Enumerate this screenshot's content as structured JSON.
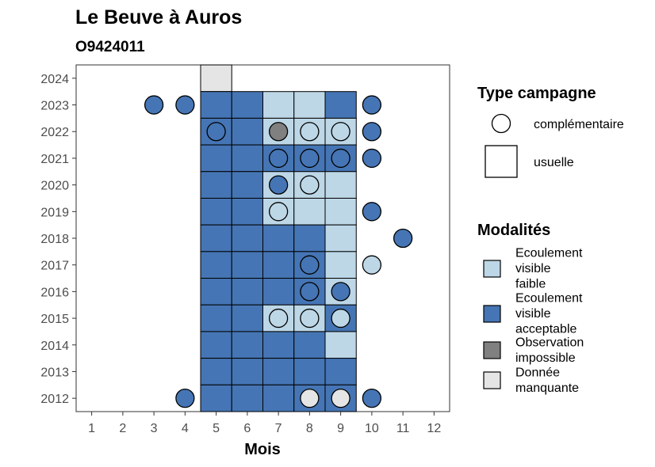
{
  "chart_data": {
    "type": "heatmap",
    "title": "Le Beuve à Auros",
    "subtitle": "O9424011",
    "xlabel": "Mois",
    "ylabel": "",
    "x_ticks": [
      "1",
      "2",
      "3",
      "4",
      "5",
      "6",
      "7",
      "8",
      "9",
      "10",
      "11",
      "12"
    ],
    "y_ticks": [
      "2012",
      "2013",
      "2014",
      "2015",
      "2016",
      "2017",
      "2018",
      "2019",
      "2020",
      "2021",
      "2022",
      "2023",
      "2024"
    ],
    "xlim": [
      0.5,
      12.5
    ],
    "ylim": [
      2011.5,
      2024.5
    ],
    "colors": {
      "faible": "#bdd7e7",
      "acceptable": "#4575b4",
      "impossible": "#808080",
      "manquante": "#e5e5e5"
    },
    "legend_type": {
      "title": "Type campagne",
      "items": [
        {
          "key": "complementaire",
          "label": "complémentaire",
          "shape": "circle"
        },
        {
          "key": "usuelle",
          "label": "usuelle",
          "shape": "square"
        }
      ]
    },
    "legend_modalites": {
      "title": "Modalités",
      "items": [
        {
          "key": "faible",
          "lines": [
            "Ecoulement",
            "visible",
            "faible"
          ]
        },
        {
          "key": "acceptable",
          "lines": [
            "Ecoulement",
            "visible",
            "acceptable"
          ]
        },
        {
          "key": "impossible",
          "lines": [
            "Observation",
            "impossible"
          ]
        },
        {
          "key": "manquante",
          "lines": [
            "Donnée",
            "manquante"
          ]
        }
      ]
    },
    "usuelle": [
      {
        "year": 2024,
        "month": 5,
        "m": "manquante"
      },
      {
        "year": 2023,
        "month": 5,
        "m": "acceptable"
      },
      {
        "year": 2023,
        "month": 6,
        "m": "acceptable"
      },
      {
        "year": 2023,
        "month": 7,
        "m": "faible"
      },
      {
        "year": 2023,
        "month": 8,
        "m": "faible"
      },
      {
        "year": 2023,
        "month": 9,
        "m": "acceptable"
      },
      {
        "year": 2022,
        "month": 5,
        "m": "acceptable"
      },
      {
        "year": 2022,
        "month": 6,
        "m": "acceptable"
      },
      {
        "year": 2022,
        "month": 7,
        "m": "faible"
      },
      {
        "year": 2022,
        "month": 8,
        "m": "faible"
      },
      {
        "year": 2022,
        "month": 9,
        "m": "faible"
      },
      {
        "year": 2021,
        "month": 5,
        "m": "acceptable"
      },
      {
        "year": 2021,
        "month": 6,
        "m": "acceptable"
      },
      {
        "year": 2021,
        "month": 7,
        "m": "acceptable"
      },
      {
        "year": 2021,
        "month": 8,
        "m": "acceptable"
      },
      {
        "year": 2021,
        "month": 9,
        "m": "acceptable"
      },
      {
        "year": 2020,
        "month": 5,
        "m": "acceptable"
      },
      {
        "year": 2020,
        "month": 6,
        "m": "acceptable"
      },
      {
        "year": 2020,
        "month": 7,
        "m": "faible"
      },
      {
        "year": 2020,
        "month": 8,
        "m": "faible"
      },
      {
        "year": 2020,
        "month": 9,
        "m": "faible"
      },
      {
        "year": 2019,
        "month": 5,
        "m": "acceptable"
      },
      {
        "year": 2019,
        "month": 6,
        "m": "acceptable"
      },
      {
        "year": 2019,
        "month": 7,
        "m": "faible"
      },
      {
        "year": 2019,
        "month": 8,
        "m": "faible"
      },
      {
        "year": 2019,
        "month": 9,
        "m": "faible"
      },
      {
        "year": 2018,
        "month": 5,
        "m": "acceptable"
      },
      {
        "year": 2018,
        "month": 6,
        "m": "acceptable"
      },
      {
        "year": 2018,
        "month": 7,
        "m": "acceptable"
      },
      {
        "year": 2018,
        "month": 8,
        "m": "acceptable"
      },
      {
        "year": 2018,
        "month": 9,
        "m": "faible"
      },
      {
        "year": 2017,
        "month": 5,
        "m": "acceptable"
      },
      {
        "year": 2017,
        "month": 6,
        "m": "acceptable"
      },
      {
        "year": 2017,
        "month": 7,
        "m": "acceptable"
      },
      {
        "year": 2017,
        "month": 8,
        "m": "acceptable"
      },
      {
        "year": 2017,
        "month": 9,
        "m": "faible"
      },
      {
        "year": 2016,
        "month": 5,
        "m": "acceptable"
      },
      {
        "year": 2016,
        "month": 6,
        "m": "acceptable"
      },
      {
        "year": 2016,
        "month": 7,
        "m": "acceptable"
      },
      {
        "year": 2016,
        "month": 8,
        "m": "acceptable"
      },
      {
        "year": 2016,
        "month": 9,
        "m": "faible"
      },
      {
        "year": 2015,
        "month": 5,
        "m": "acceptable"
      },
      {
        "year": 2015,
        "month": 6,
        "m": "acceptable"
      },
      {
        "year": 2015,
        "month": 7,
        "m": "faible"
      },
      {
        "year": 2015,
        "month": 8,
        "m": "faible"
      },
      {
        "year": 2015,
        "month": 9,
        "m": "acceptable"
      },
      {
        "year": 2014,
        "month": 5,
        "m": "acceptable"
      },
      {
        "year": 2014,
        "month": 6,
        "m": "acceptable"
      },
      {
        "year": 2014,
        "month": 7,
        "m": "acceptable"
      },
      {
        "year": 2014,
        "month": 8,
        "m": "acceptable"
      },
      {
        "year": 2014,
        "month": 9,
        "m": "faible"
      },
      {
        "year": 2013,
        "month": 5,
        "m": "acceptable"
      },
      {
        "year": 2013,
        "month": 6,
        "m": "acceptable"
      },
      {
        "year": 2013,
        "month": 7,
        "m": "acceptable"
      },
      {
        "year": 2013,
        "month": 8,
        "m": "acceptable"
      },
      {
        "year": 2013,
        "month": 9,
        "m": "acceptable"
      },
      {
        "year": 2012,
        "month": 5,
        "m": "acceptable"
      },
      {
        "year": 2012,
        "month": 6,
        "m": "acceptable"
      },
      {
        "year": 2012,
        "month": 7,
        "m": "acceptable"
      },
      {
        "year": 2012,
        "month": 8,
        "m": "acceptable"
      },
      {
        "year": 2012,
        "month": 9,
        "m": "acceptable"
      }
    ],
    "complementaire": [
      {
        "year": 2023,
        "month": 3,
        "m": "acceptable"
      },
      {
        "year": 2023,
        "month": 4,
        "m": "acceptable"
      },
      {
        "year": 2023,
        "month": 10,
        "m": "acceptable"
      },
      {
        "year": 2022,
        "month": 5,
        "m": "acceptable"
      },
      {
        "year": 2022,
        "month": 7,
        "m": "impossible"
      },
      {
        "year": 2022,
        "month": 8,
        "m": "faible"
      },
      {
        "year": 2022,
        "month": 9,
        "m": "faible"
      },
      {
        "year": 2022,
        "month": 10,
        "m": "acceptable"
      },
      {
        "year": 2021,
        "month": 7,
        "m": "acceptable"
      },
      {
        "year": 2021,
        "month": 8,
        "m": "acceptable"
      },
      {
        "year": 2021,
        "month": 9,
        "m": "acceptable"
      },
      {
        "year": 2021,
        "month": 10,
        "m": "acceptable"
      },
      {
        "year": 2020,
        "month": 7,
        "m": "acceptable"
      },
      {
        "year": 2020,
        "month": 8,
        "m": "faible"
      },
      {
        "year": 2019,
        "month": 7,
        "m": "faible"
      },
      {
        "year": 2019,
        "month": 10,
        "m": "acceptable"
      },
      {
        "year": 2018,
        "month": 11,
        "m": "acceptable"
      },
      {
        "year": 2017,
        "month": 8,
        "m": "acceptable"
      },
      {
        "year": 2017,
        "month": 10,
        "m": "faible"
      },
      {
        "year": 2016,
        "month": 8,
        "m": "acceptable"
      },
      {
        "year": 2016,
        "month": 9,
        "m": "acceptable"
      },
      {
        "year": 2015,
        "month": 7,
        "m": "faible"
      },
      {
        "year": 2015,
        "month": 8,
        "m": "faible"
      },
      {
        "year": 2015,
        "month": 9,
        "m": "faible"
      },
      {
        "year": 2012,
        "month": 4,
        "m": "acceptable"
      },
      {
        "year": 2012,
        "month": 8,
        "m": "manquante"
      },
      {
        "year": 2012,
        "month": 9,
        "m": "manquante"
      },
      {
        "year": 2012,
        "month": 10,
        "m": "acceptable"
      }
    ]
  }
}
